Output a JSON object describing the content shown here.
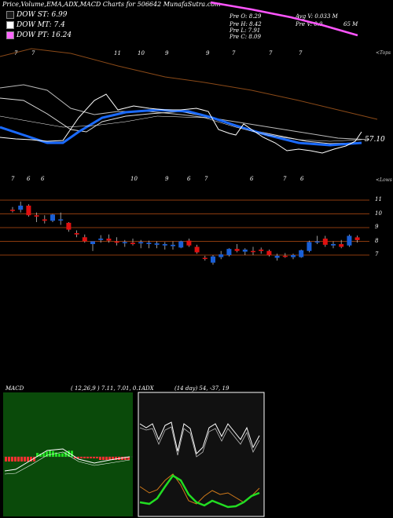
{
  "title": "Price,Volume,EMA,ADX,MACD Charts for 506642  MunafaSutra.com",
  "legend": [
    {
      "label": "DOW ST: 6.99",
      "color": "#1a1a1a"
    },
    {
      "label": "DOW MT: 7.4",
      "color": "#ffffff"
    },
    {
      "label": "DOW PT: 16.24",
      "color": "#ff66ff"
    }
  ],
  "ohlc": {
    "open": "Pre  O: 8.29",
    "high": "Pre  H: 8.42",
    "low": "Pre  L: 7.91",
    "close": "Pre  C: 8.09",
    "avg_vol": "Avg V: 0.033 M",
    "vol": "Pre  V: 0.0",
    "vol_suffix": "65 M"
  },
  "labels": {
    "tops": "<Tops",
    "lows": "<Lows",
    "last_value": "57.10",
    "macd_title": "MACD",
    "macd_params": "( 12,26,9 ) 7.11, 7.01, 0.1",
    "adx_title": "ADX",
    "adx_params": "(14  day) 54,  -37,  19"
  },
  "top_day_labels": [
    "7",
    "7",
    "11",
    "10",
    "9",
    "9",
    "7",
    "7",
    "7"
  ],
  "low_day_labels": [
    "7",
    "6",
    "6",
    "10",
    "9",
    "6",
    "7",
    "6",
    "7",
    "6"
  ],
  "price_ticks": [
    "11",
    "10",
    "9",
    "8",
    "7"
  ],
  "colors": {
    "up": "#1a5fd6",
    "down": "#e01010",
    "ema_short": "#1a6aff",
    "ema_long": "#8b4a18",
    "macd_bg": "#0a4a0a",
    "macd_line_up": "#ff3030",
    "macd_line_dn": "#22dd22",
    "adx_fill": "#111111"
  },
  "chart_data": [
    {
      "type": "line",
      "name": "EMA / price panel",
      "series": [
        {
          "name": "DOW ST",
          "values": [
            6.99
          ]
        },
        {
          "name": "DOW MT",
          "values": [
            7.4
          ]
        },
        {
          "name": "DOW PT",
          "values": [
            16.24
          ]
        }
      ],
      "last_value": 57.1
    },
    {
      "type": "candlestick",
      "yticks": [
        11,
        10,
        9,
        8,
        7
      ],
      "ylim": [
        6.2,
        11.8
      ],
      "candles": [
        {
          "o": 10.3,
          "h": 10.5,
          "l": 10.1,
          "c": 10.25
        },
        {
          "o": 10.3,
          "h": 10.9,
          "l": 10.1,
          "c": 10.6
        },
        {
          "o": 10.6,
          "h": 10.7,
          "l": 9.8,
          "c": 9.9
        },
        {
          "o": 9.9,
          "h": 10.1,
          "l": 9.4,
          "c": 9.8
        },
        {
          "o": 9.6,
          "h": 9.9,
          "l": 9.3,
          "c": 9.5
        },
        {
          "o": 9.5,
          "h": 10.0,
          "l": 9.4,
          "c": 9.95
        },
        {
          "o": 9.6,
          "h": 10.1,
          "l": 9.2,
          "c": 9.6
        },
        {
          "o": 9.35,
          "h": 9.4,
          "l": 8.7,
          "c": 8.85
        },
        {
          "o": 8.6,
          "h": 8.8,
          "l": 8.3,
          "c": 8.5
        },
        {
          "o": 8.3,
          "h": 8.5,
          "l": 7.9,
          "c": 8.0
        },
        {
          "o": 7.8,
          "h": 8.0,
          "l": 7.3,
          "c": 8.0
        },
        {
          "o": 8.1,
          "h": 8.45,
          "l": 7.9,
          "c": 8.2
        },
        {
          "o": 8.2,
          "h": 8.5,
          "l": 7.9,
          "c": 8.05
        },
        {
          "o": 8.0,
          "h": 8.3,
          "l": 7.7,
          "c": 7.9
        },
        {
          "o": 7.9,
          "h": 8.1,
          "l": 7.6,
          "c": 7.95
        },
        {
          "o": 7.9,
          "h": 8.2,
          "l": 7.7,
          "c": 7.8
        },
        {
          "o": 7.85,
          "h": 8.1,
          "l": 7.5,
          "c": 7.95
        },
        {
          "o": 7.8,
          "h": 8.05,
          "l": 7.5,
          "c": 7.9
        },
        {
          "o": 7.75,
          "h": 8.0,
          "l": 7.5,
          "c": 7.85
        },
        {
          "o": 7.7,
          "h": 7.95,
          "l": 7.4,
          "c": 7.8
        },
        {
          "o": 7.65,
          "h": 8.0,
          "l": 7.4,
          "c": 7.75
        },
        {
          "o": 7.55,
          "h": 8.05,
          "l": 7.5,
          "c": 8.0
        },
        {
          "o": 8.05,
          "h": 8.2,
          "l": 7.6,
          "c": 7.7
        },
        {
          "o": 7.6,
          "h": 7.75,
          "l": 7.1,
          "c": 7.2
        },
        {
          "o": 6.8,
          "h": 6.95,
          "l": 6.6,
          "c": 6.75
        },
        {
          "o": 6.45,
          "h": 7.0,
          "l": 6.3,
          "c": 6.9
        },
        {
          "o": 6.85,
          "h": 7.3,
          "l": 6.7,
          "c": 7.05
        },
        {
          "o": 7.0,
          "h": 7.5,
          "l": 6.9,
          "c": 7.45
        },
        {
          "o": 7.45,
          "h": 7.8,
          "l": 7.2,
          "c": 7.3
        },
        {
          "o": 7.25,
          "h": 7.5,
          "l": 7.0,
          "c": 7.4
        },
        {
          "o": 7.3,
          "h": 7.6,
          "l": 7.0,
          "c": 7.25
        },
        {
          "o": 7.4,
          "h": 7.55,
          "l": 7.1,
          "c": 7.3
        },
        {
          "o": 7.3,
          "h": 7.4,
          "l": 6.9,
          "c": 7.0
        },
        {
          "o": 6.8,
          "h": 7.1,
          "l": 6.6,
          "c": 6.95
        },
        {
          "o": 6.95,
          "h": 7.15,
          "l": 6.8,
          "c": 6.9
        },
        {
          "o": 6.85,
          "h": 7.1,
          "l": 6.7,
          "c": 7.0
        },
        {
          "o": 6.85,
          "h": 7.4,
          "l": 6.8,
          "c": 7.35
        },
        {
          "o": 7.3,
          "h": 8.05,
          "l": 7.2,
          "c": 7.95
        },
        {
          "o": 7.95,
          "h": 8.4,
          "l": 7.8,
          "c": 8.0
        },
        {
          "o": 8.2,
          "h": 8.4,
          "l": 7.6,
          "c": 7.75
        },
        {
          "o": 7.7,
          "h": 8.0,
          "l": 7.5,
          "c": 7.8
        },
        {
          "o": 7.8,
          "h": 8.1,
          "l": 7.5,
          "c": 7.6
        },
        {
          "o": 7.7,
          "h": 8.5,
          "l": 7.6,
          "c": 8.4
        },
        {
          "o": 8.29,
          "h": 8.42,
          "l": 7.91,
          "c": 8.09
        }
      ]
    },
    {
      "type": "bar",
      "name": "MACD",
      "values": [
        7.11,
        7.01,
        0.1
      ]
    },
    {
      "type": "line",
      "name": "ADX",
      "values": [
        54,
        -37,
        19
      ]
    }
  ]
}
